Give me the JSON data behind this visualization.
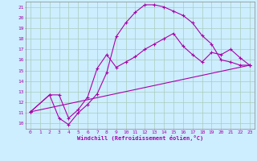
{
  "xlabel": "Windchill (Refroidissement éolien,°C)",
  "bg_color": "#cceeff",
  "grid_color": "#aaccbb",
  "line_color": "#aa00aa",
  "xlim": [
    -0.5,
    23.5
  ],
  "ylim": [
    9.5,
    21.5
  ],
  "xticks": [
    0,
    1,
    2,
    3,
    4,
    5,
    6,
    7,
    8,
    9,
    10,
    11,
    12,
    13,
    14,
    15,
    16,
    17,
    18,
    19,
    20,
    21,
    22,
    23
  ],
  "yticks": [
    10,
    11,
    12,
    13,
    14,
    15,
    16,
    17,
    18,
    19,
    20,
    21
  ],
  "line1_x": [
    0,
    2,
    3,
    4,
    5,
    6,
    7,
    8,
    9,
    10,
    11,
    12,
    13,
    14,
    15,
    16,
    17,
    18,
    19,
    20,
    21,
    22,
    23
  ],
  "line1_y": [
    11.1,
    12.7,
    10.5,
    9.9,
    11.0,
    11.8,
    12.8,
    14.8,
    18.2,
    19.5,
    20.5,
    21.2,
    21.2,
    21.0,
    20.6,
    20.2,
    19.5,
    18.3,
    17.5,
    16.0,
    15.8,
    15.5,
    15.5
  ],
  "line2_x": [
    0,
    2,
    3,
    4,
    5,
    6,
    7,
    8,
    9,
    10,
    11,
    12,
    13,
    14,
    15,
    16,
    17,
    18,
    19,
    20,
    21,
    22,
    23
  ],
  "line2_y": [
    11.1,
    12.7,
    12.7,
    10.5,
    11.3,
    12.5,
    15.2,
    16.5,
    15.3,
    15.8,
    16.3,
    17.0,
    17.5,
    18.0,
    18.5,
    17.3,
    16.5,
    15.8,
    16.7,
    16.5,
    17.0,
    16.2,
    15.5
  ],
  "line3_x": [
    0,
    23
  ],
  "line3_y": [
    11.1,
    15.5
  ]
}
